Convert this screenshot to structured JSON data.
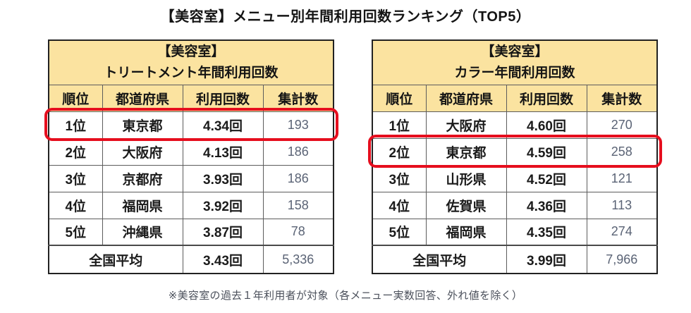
{
  "page": {
    "title": "【美容室】メニュー別年間利用回数ランキング（TOP5）",
    "footnote": "※美容室の過去１年利用者が対象（各メニュー実数回答、外れ値を除く）"
  },
  "colors": {
    "header_bg": "#fbe3a0",
    "highlight_red": "#e60e1e",
    "total_text": "#5a6375"
  },
  "tables": [
    {
      "title_line1": "【美容室】",
      "title_line2": "トリートメント年間利用回数",
      "columns": {
        "rank": "順位",
        "prefecture": "都道府県",
        "count": "利用回数",
        "total": "集計数"
      },
      "rows": [
        {
          "rank": "1位",
          "prefecture": "東京都",
          "count": "4.34回",
          "total": "193"
        },
        {
          "rank": "2位",
          "prefecture": "大阪府",
          "count": "4.13回",
          "total": "186"
        },
        {
          "rank": "3位",
          "prefecture": "京都府",
          "count": "3.93回",
          "total": "186"
        },
        {
          "rank": "4位",
          "prefecture": "福岡県",
          "count": "3.92回",
          "total": "158"
        },
        {
          "rank": "5位",
          "prefecture": "沖縄県",
          "count": "3.87回",
          "total": "78"
        }
      ],
      "average": {
        "label": "全国平均",
        "count": "3.43回",
        "total": "5,336"
      },
      "highlight_row": 0
    },
    {
      "title_line1": "【美容室】",
      "title_line2": "カラー年間利用回数",
      "columns": {
        "rank": "順位",
        "prefecture": "都道府県",
        "count": "利用回数",
        "total": "集計数"
      },
      "rows": [
        {
          "rank": "1位",
          "prefecture": "大阪府",
          "count": "4.60回",
          "total": "270"
        },
        {
          "rank": "2位",
          "prefecture": "東京都",
          "count": "4.59回",
          "total": "258"
        },
        {
          "rank": "3位",
          "prefecture": "山形県",
          "count": "4.52回",
          "total": "121"
        },
        {
          "rank": "4位",
          "prefecture": "佐賀県",
          "count": "4.36回",
          "total": "113"
        },
        {
          "rank": "5位",
          "prefecture": "福岡県",
          "count": "4.35回",
          "total": "274"
        }
      ],
      "average": {
        "label": "全国平均",
        "count": "3.99回",
        "total": "7,966"
      },
      "highlight_row": 1
    }
  ]
}
